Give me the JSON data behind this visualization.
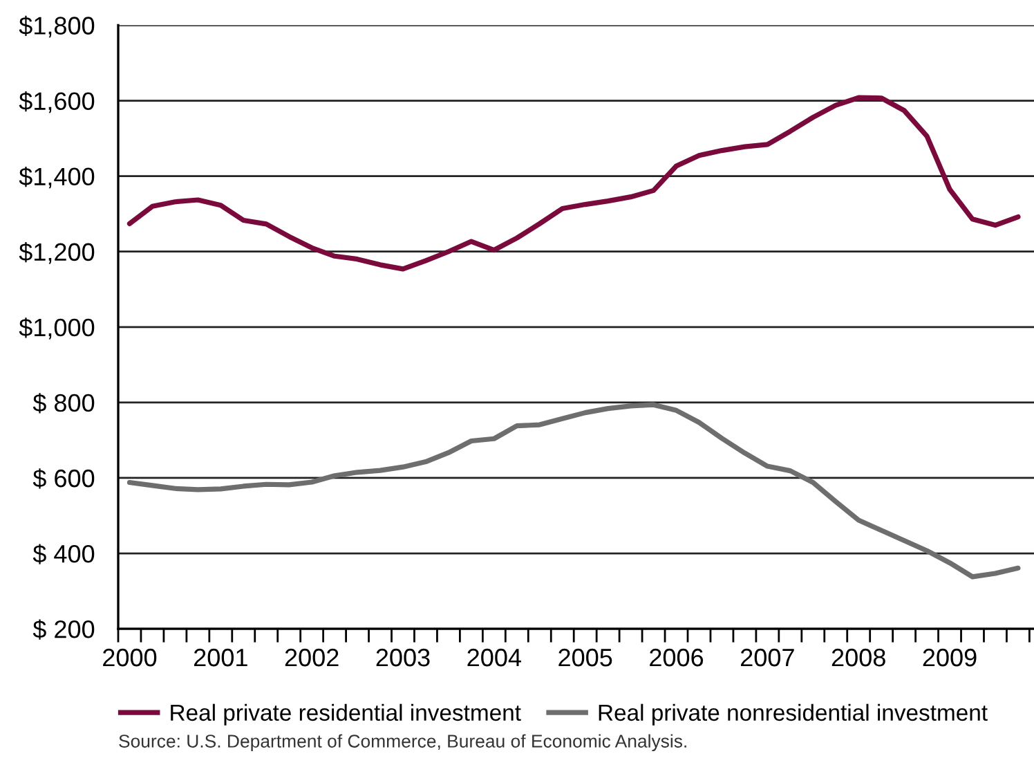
{
  "chart_data": {
    "type": "line",
    "categories": [
      "2000",
      null,
      null,
      null,
      "2001",
      null,
      null,
      null,
      "2002",
      null,
      null,
      null,
      "2003",
      null,
      null,
      null,
      "2004",
      null,
      null,
      null,
      "2005",
      null,
      null,
      null,
      "2006",
      null,
      null,
      null,
      "2007",
      null,
      null,
      null,
      "2008",
      null,
      null,
      null,
      "2009",
      null,
      null,
      null
    ],
    "series": [
      {
        "name": "Real private residential investment",
        "color": "#7a0a3c",
        "values": [
          1274,
          1320,
          1332,
          1337,
          1323,
          1283,
          1273,
          1240,
          1210,
          1188,
          1180,
          1165,
          1154,
          1176,
          1200,
          1227,
          1204,
          1236,
          1274,
          1314,
          1325,
          1334,
          1345,
          1362,
          1427,
          1455,
          1468,
          1478,
          1484,
          1519,
          1556,
          1588,
          1608,
          1607,
          1574,
          1506,
          1365,
          1286,
          1270,
          1292
        ]
      },
      {
        "name": "Real private nonresidential investment",
        "color": "#6e6e6e",
        "values": [
          588,
          580,
          572,
          569,
          571,
          578,
          583,
          582,
          589,
          606,
          615,
          620,
          629,
          643,
          667,
          698,
          704,
          738,
          741,
          757,
          773,
          784,
          791,
          794,
          779,
          747,
          705,
          666,
          631,
          619,
          588,
          537,
          488,
          461,
          434,
          407,
          375,
          338,
          347,
          361
        ]
      }
    ],
    "ylim": [
      200,
      1800
    ],
    "yticks": [
      {
        "value": 200,
        "label": "$ 200"
      },
      {
        "value": 400,
        "label": "$ 400"
      },
      {
        "value": 600,
        "label": "$ 600"
      },
      {
        "value": 800,
        "label": "$ 800"
      },
      {
        "value": 1000,
        "label": "$1,000"
      },
      {
        "value": 1200,
        "label": "$1,200"
      },
      {
        "value": 1400,
        "label": "$1,400"
      },
      {
        "value": 1600,
        "label": "$1,600"
      },
      {
        "value": 1800,
        "label": "$1,800"
      }
    ],
    "grid": "y",
    "legend": "bottom",
    "marker": "none",
    "line_style": "solid",
    "annotations": [
      "Source: U.S. Department of Commerce, Bureau of Economic Analysis."
    ]
  }
}
